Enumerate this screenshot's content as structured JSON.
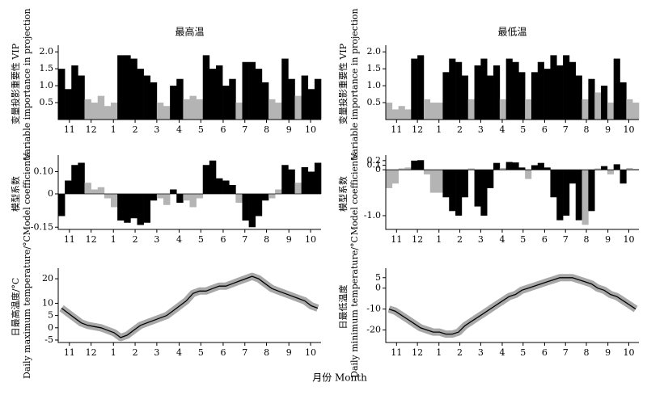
{
  "figure": {
    "xlabel": "月份 Month"
  },
  "chart_data": [
    {
      "type": "bar",
      "title": "最高温",
      "ylabel": [
        "变量投影重要性 VIP",
        "Variable importance in projection"
      ],
      "important_color": "#000000",
      "other_color": "#b4b4b4",
      "threshold": 0.8,
      "values": [
        1.5,
        0.9,
        1.6,
        1.3,
        0.6,
        0.5,
        0.7,
        0.4,
        0.5,
        1.9,
        1.9,
        1.8,
        1.5,
        1.3,
        1.1,
        0.5,
        0.4,
        1.0,
        1.2,
        0.6,
        0.7,
        0.6,
        1.9,
        1.5,
        1.6,
        1.0,
        1.2,
        0.5,
        1.7,
        1.7,
        1.5,
        1.1,
        0.6,
        0.5,
        1.8,
        1.2,
        0.7,
        1.3,
        0.9,
        1.2
      ],
      "ylim": [
        0,
        2.1
      ],
      "yticks": [
        {
          "value": 2,
          "label": "2.0"
        },
        1.5,
        {
          "value": 1,
          "label": "1.0"
        },
        0.5
      ],
      "xlim": [
        0,
        40
      ],
      "xticks": [
        {
          "value": 1.7,
          "label": "11"
        },
        {
          "value": 5.0,
          "label": "12"
        },
        {
          "value": 8.4,
          "label": "1"
        },
        {
          "value": 11.7,
          "label": "2"
        },
        {
          "value": 15.0,
          "label": "3"
        },
        {
          "value": 18.4,
          "label": "4"
        },
        {
          "value": 21.7,
          "label": "5"
        },
        {
          "value": 25.1,
          "label": "6"
        },
        {
          "value": 28.4,
          "label": "7"
        },
        {
          "value": 31.7,
          "label": "8"
        },
        {
          "value": 35.1,
          "label": "9"
        },
        {
          "value": 38.4,
          "label": "10"
        }
      ]
    },
    {
      "type": "bar",
      "ylabel": [
        "模型系数",
        "Model coefficients"
      ],
      "values": [
        -0.1,
        0.06,
        0.13,
        0.14,
        0.05,
        0.02,
        0.03,
        -0.02,
        -0.06,
        -0.12,
        -0.13,
        -0.11,
        -0.14,
        -0.13,
        -0.03,
        -0.02,
        -0.05,
        0.02,
        -0.04,
        -0.03,
        -0.06,
        -0.02,
        0.13,
        0.15,
        0.07,
        0.06,
        0.04,
        -0.04,
        -0.12,
        -0.15,
        -0.1,
        -0.03,
        -0.02,
        0.02,
        0.13,
        0.11,
        0.05,
        0.12,
        0.1,
        0.14
      ],
      "ylim": [
        -0.16,
        0.16
      ],
      "yticks": [
        {
          "value": 0.1,
          "label": "0.10"
        },
        0,
        -0.15
      ],
      "xlim": [
        0,
        40
      ],
      "xticks": [
        {
          "value": 1.7,
          "label": "11"
        },
        {
          "value": 5.0,
          "label": "12"
        },
        {
          "value": 8.4,
          "label": "1"
        },
        {
          "value": 11.7,
          "label": "2"
        },
        {
          "value": 15.0,
          "label": "3"
        },
        {
          "value": 18.4,
          "label": "4"
        },
        {
          "value": 21.7,
          "label": "5"
        },
        {
          "value": 25.1,
          "label": "6"
        },
        {
          "value": 28.4,
          "label": "7"
        },
        {
          "value": 31.7,
          "label": "8"
        },
        {
          "value": 35.1,
          "label": "9"
        },
        {
          "value": 38.4,
          "label": "10"
        }
      ]
    },
    {
      "type": "line",
      "ylabel": [
        "日最高温度/°C",
        "Daily maximum temperature/°C"
      ],
      "color": "#000000",
      "band_color": "#a8a8a8",
      "values": [
        8,
        6,
        4,
        2,
        1,
        0.5,
        0,
        -1,
        -2,
        -4,
        -3,
        -1,
        1,
        2,
        3,
        4,
        5,
        7,
        9,
        11,
        14,
        15,
        15,
        16,
        17,
        17,
        18,
        19,
        20,
        21,
        20,
        18,
        16,
        15,
        14,
        13,
        12,
        11,
        9,
        8
      ],
      "ylim": [
        -6,
        23
      ],
      "yticks": [
        20,
        10,
        5,
        0,
        -5
      ],
      "xlim": [
        0,
        40
      ],
      "xticks": [
        {
          "value": 1.7,
          "label": "11"
        },
        {
          "value": 5.0,
          "label": "12"
        },
        {
          "value": 8.4,
          "label": "1"
        },
        {
          "value": 11.7,
          "label": "2"
        },
        {
          "value": 15.0,
          "label": "3"
        },
        {
          "value": 18.4,
          "label": "4"
        },
        {
          "value": 21.7,
          "label": "5"
        },
        {
          "value": 25.1,
          "label": "6"
        },
        {
          "value": 28.4,
          "label": "7"
        },
        {
          "value": 31.7,
          "label": "8"
        },
        {
          "value": 35.1,
          "label": "9"
        },
        {
          "value": 38.4,
          "label": "10"
        }
      ]
    },
    {
      "type": "bar",
      "title": "最低温",
      "ylabel": [
        "变量投影重要性 VIP",
        "Variable importance in projection"
      ],
      "important_color": "#000000",
      "other_color": "#b4b4b4",
      "threshold": 0.8,
      "values": [
        0.5,
        0.3,
        0.4,
        0.3,
        1.8,
        1.9,
        0.6,
        0.5,
        0.5,
        1.4,
        1.8,
        1.7,
        1.3,
        0.6,
        1.6,
        1.8,
        1.3,
        1.6,
        0.6,
        1.8,
        1.7,
        1.4,
        0.6,
        1.4,
        1.7,
        1.5,
        1.9,
        1.6,
        1.9,
        1.7,
        1.3,
        0.6,
        1.2,
        0.8,
        1.0,
        0.5,
        1.8,
        1.1,
        0.6,
        0.5
      ],
      "ylim": [
        0,
        2.1
      ],
      "yticks": [
        {
          "value": 2,
          "label": "2.0"
        },
        1.5,
        {
          "value": 1,
          "label": "1.0"
        },
        0.5
      ],
      "xlim": [
        0,
        40
      ],
      "xticks": [
        {
          "value": 1.7,
          "label": "11"
        },
        {
          "value": 5.0,
          "label": "12"
        },
        {
          "value": 8.4,
          "label": "1"
        },
        {
          "value": 11.7,
          "label": "2"
        },
        {
          "value": 15.0,
          "label": "3"
        },
        {
          "value": 18.4,
          "label": "4"
        },
        {
          "value": 21.7,
          "label": "5"
        },
        {
          "value": 25.1,
          "label": "6"
        },
        {
          "value": 28.4,
          "label": "7"
        },
        {
          "value": 31.7,
          "label": "8"
        },
        {
          "value": 35.1,
          "label": "9"
        },
        {
          "value": 38.4,
          "label": "10"
        }
      ]
    },
    {
      "type": "bar",
      "ylabel": [
        "模型系数",
        "Model coefficients"
      ],
      "values": [
        -0.4,
        -0.3,
        0.03,
        0.05,
        0.2,
        0.21,
        -0.1,
        -0.5,
        -0.5,
        -0.6,
        -0.9,
        -1.0,
        -0.6,
        0.03,
        -0.8,
        -1.0,
        -0.4,
        0.15,
        0.04,
        0.17,
        0.16,
        0.05,
        -0.2,
        0.1,
        0.15,
        0.05,
        -0.6,
        -1.1,
        -1.0,
        -0.3,
        -1.1,
        -1.2,
        -0.9,
        0.03,
        0.08,
        -0.1,
        0.12,
        -0.3,
        0.04,
        0.02
      ],
      "ylim": [
        -1.3,
        0.25
      ],
      "yticks": [
        0.2,
        0.1,
        0,
        {
          "value": -1,
          "label": "-1.0"
        }
      ],
      "xlim": [
        0,
        40
      ],
      "xticks": [
        {
          "value": 1.7,
          "label": "11"
        },
        {
          "value": 5.0,
          "label": "12"
        },
        {
          "value": 8.4,
          "label": "1"
        },
        {
          "value": 11.7,
          "label": "2"
        },
        {
          "value": 15.0,
          "label": "3"
        },
        {
          "value": 18.4,
          "label": "4"
        },
        {
          "value": 21.7,
          "label": "5"
        },
        {
          "value": 25.1,
          "label": "6"
        },
        {
          "value": 28.4,
          "label": "7"
        },
        {
          "value": 31.7,
          "label": "8"
        },
        {
          "value": 35.1,
          "label": "9"
        },
        {
          "value": 38.4,
          "label": "10"
        }
      ]
    },
    {
      "type": "line",
      "ylabel": [
        "日最低温度",
        "Daily minimum temperature/°C"
      ],
      "color": "#000000",
      "band_color": "#a8a8a8",
      "values": [
        -10,
        -11,
        -13,
        -15,
        -17,
        -19,
        -20,
        -21,
        -21,
        -22,
        -22,
        -21,
        -18,
        -16,
        -14,
        -12,
        -10,
        -8,
        -6,
        -4,
        -3,
        -1,
        0,
        1,
        2,
        3,
        4,
        5,
        5,
        5,
        4,
        3,
        2,
        0,
        -1,
        -3,
        -4,
        -6,
        -8,
        -10
      ],
      "ylim": [
        -26,
        8
      ],
      "yticks": [
        5,
        0,
        -10,
        -20
      ],
      "xlim": [
        0,
        40
      ],
      "xticks": [
        {
          "value": 1.7,
          "label": "11"
        },
        {
          "value": 5.0,
          "label": "12"
        },
        {
          "value": 8.4,
          "label": "1"
        },
        {
          "value": 11.7,
          "label": "2"
        },
        {
          "value": 15.0,
          "label": "3"
        },
        {
          "value": 18.4,
          "label": "4"
        },
        {
          "value": 21.7,
          "label": "5"
        },
        {
          "value": 25.1,
          "label": "6"
        },
        {
          "value": 28.4,
          "label": "7"
        },
        {
          "value": 31.7,
          "label": "8"
        },
        {
          "value": 35.1,
          "label": "9"
        },
        {
          "value": 38.4,
          "label": "10"
        }
      ]
    }
  ]
}
